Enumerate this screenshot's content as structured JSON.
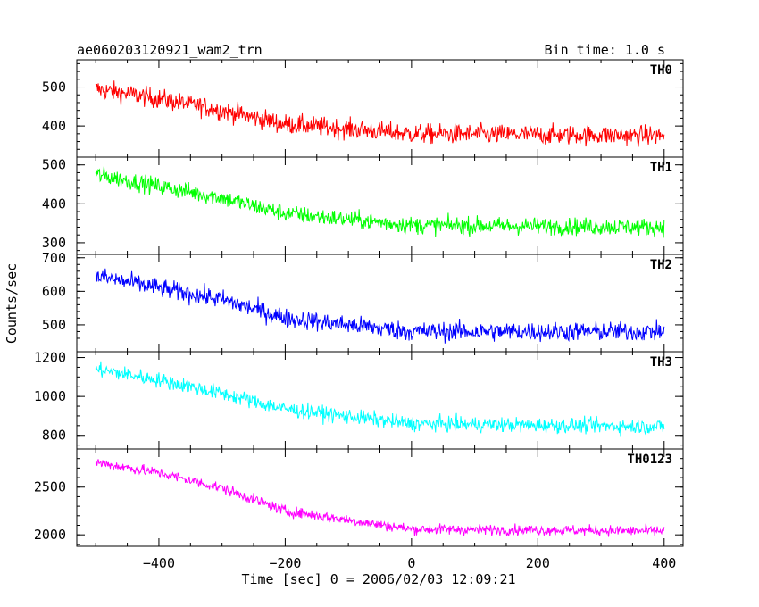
{
  "header": {
    "title": "ae060203120921_wam2_trn",
    "bin_time": "Bin time: 1.0 s"
  },
  "chart_data": {
    "type": "line",
    "xlabel": "Time [sec] 0 = 2006/02/03 12:09:21",
    "ylabel": "Counts/sec",
    "xlim": [
      -530,
      430
    ],
    "x_range": [
      -500,
      400
    ],
    "x_step": 1,
    "xticks": [
      -400,
      -200,
      0,
      200,
      400
    ],
    "xtick_labels": [
      "−400",
      "−200",
      "0",
      "200",
      "400"
    ],
    "panels": [
      {
        "name": "TH0",
        "color": "#ff0000",
        "ylim": [
          320,
          570
        ],
        "yticks": [
          400,
          500
        ],
        "ytick_labels": [
          "400",
          "500"
        ],
        "trend": [
          [
            -500,
            495
          ],
          [
            -400,
            470
          ],
          [
            -300,
            440
          ],
          [
            -200,
            405
          ],
          [
            0,
            380
          ],
          [
            400,
            375
          ]
        ],
        "noise": 25
      },
      {
        "name": "TH1",
        "color": "#00ff00",
        "ylim": [
          270,
          520
        ],
        "yticks": [
          300,
          400,
          500
        ],
        "ytick_labels": [
          "300",
          "400",
          "500"
        ],
        "trend": [
          [
            -500,
            475
          ],
          [
            -400,
            445
          ],
          [
            -300,
            415
          ],
          [
            -200,
            375
          ],
          [
            0,
            345
          ],
          [
            400,
            340
          ]
        ],
        "noise": 22
      },
      {
        "name": "TH2",
        "color": "#0000ff",
        "ylim": [
          420,
          710
        ],
        "yticks": [
          500,
          600,
          700
        ],
        "ytick_labels": [
          "500",
          "600",
          "700"
        ],
        "trend": [
          [
            -500,
            645
          ],
          [
            -400,
            610
          ],
          [
            -300,
            575
          ],
          [
            -200,
            520
          ],
          [
            0,
            480
          ],
          [
            400,
            480
          ]
        ],
        "noise": 28
      },
      {
        "name": "TH3",
        "color": "#00ffff",
        "ylim": [
          730,
          1230
        ],
        "yticks": [
          800,
          1000,
          1200
        ],
        "ytick_labels": [
          "800",
          "1000",
          "1200"
        ],
        "trend": [
          [
            -500,
            1140
          ],
          [
            -400,
            1085
          ],
          [
            -300,
            1015
          ],
          [
            -200,
            935
          ],
          [
            0,
            860
          ],
          [
            400,
            845
          ]
        ],
        "noise": 38
      },
      {
        "name": "TH0123",
        "color": "#ff00ff",
        "ylim": [
          1880,
          2900
        ],
        "yticks": [
          2000,
          2500
        ],
        "ytick_labels": [
          "2000",
          "2500"
        ],
        "trend": [
          [
            -500,
            2760
          ],
          [
            -400,
            2650
          ],
          [
            -300,
            2490
          ],
          [
            -200,
            2250
          ],
          [
            0,
            2060
          ],
          [
            400,
            2040
          ]
        ],
        "noise": 55
      }
    ]
  }
}
